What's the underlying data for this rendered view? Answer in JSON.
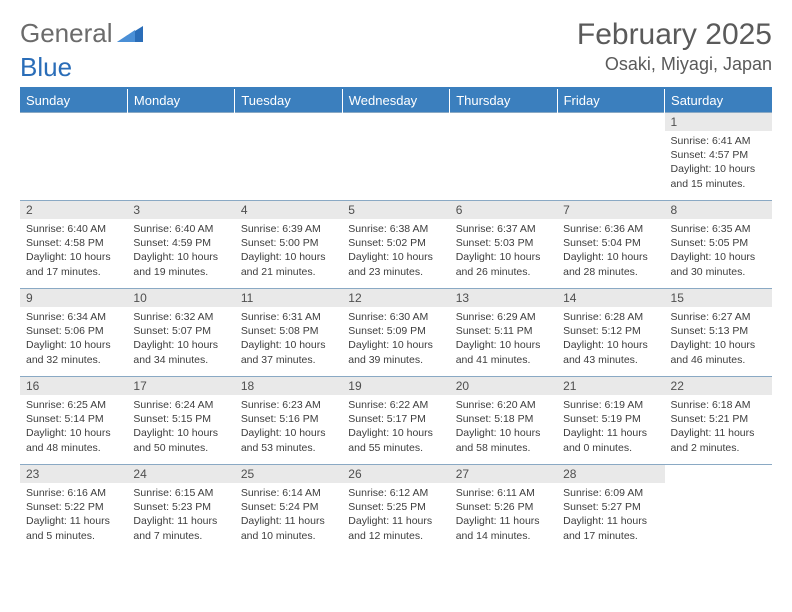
{
  "logo": {
    "word1": "General",
    "word2": "Blue"
  },
  "title": "February 2025",
  "location": "Osaki, Miyagi, Japan",
  "colors": {
    "header_bg": "#3b7fbe",
    "header_text": "#ffffff",
    "daynum_bg": "#e9e9e9",
    "rule": "#8aa9c4",
    "text": "#3d3d3d",
    "title_text": "#5a5a5a"
  },
  "weekdays": [
    "Sunday",
    "Monday",
    "Tuesday",
    "Wednesday",
    "Thursday",
    "Friday",
    "Saturday"
  ],
  "weeks": [
    [
      null,
      null,
      null,
      null,
      null,
      null,
      {
        "n": "1",
        "sr": "Sunrise: 6:41 AM",
        "ss": "Sunset: 4:57 PM",
        "d1": "Daylight: 10 hours",
        "d2": "and 15 minutes."
      }
    ],
    [
      {
        "n": "2",
        "sr": "Sunrise: 6:40 AM",
        "ss": "Sunset: 4:58 PM",
        "d1": "Daylight: 10 hours",
        "d2": "and 17 minutes."
      },
      {
        "n": "3",
        "sr": "Sunrise: 6:40 AM",
        "ss": "Sunset: 4:59 PM",
        "d1": "Daylight: 10 hours",
        "d2": "and 19 minutes."
      },
      {
        "n": "4",
        "sr": "Sunrise: 6:39 AM",
        "ss": "Sunset: 5:00 PM",
        "d1": "Daylight: 10 hours",
        "d2": "and 21 minutes."
      },
      {
        "n": "5",
        "sr": "Sunrise: 6:38 AM",
        "ss": "Sunset: 5:02 PM",
        "d1": "Daylight: 10 hours",
        "d2": "and 23 minutes."
      },
      {
        "n": "6",
        "sr": "Sunrise: 6:37 AM",
        "ss": "Sunset: 5:03 PM",
        "d1": "Daylight: 10 hours",
        "d2": "and 26 minutes."
      },
      {
        "n": "7",
        "sr": "Sunrise: 6:36 AM",
        "ss": "Sunset: 5:04 PM",
        "d1": "Daylight: 10 hours",
        "d2": "and 28 minutes."
      },
      {
        "n": "8",
        "sr": "Sunrise: 6:35 AM",
        "ss": "Sunset: 5:05 PM",
        "d1": "Daylight: 10 hours",
        "d2": "and 30 minutes."
      }
    ],
    [
      {
        "n": "9",
        "sr": "Sunrise: 6:34 AM",
        "ss": "Sunset: 5:06 PM",
        "d1": "Daylight: 10 hours",
        "d2": "and 32 minutes."
      },
      {
        "n": "10",
        "sr": "Sunrise: 6:32 AM",
        "ss": "Sunset: 5:07 PM",
        "d1": "Daylight: 10 hours",
        "d2": "and 34 minutes."
      },
      {
        "n": "11",
        "sr": "Sunrise: 6:31 AM",
        "ss": "Sunset: 5:08 PM",
        "d1": "Daylight: 10 hours",
        "d2": "and 37 minutes."
      },
      {
        "n": "12",
        "sr": "Sunrise: 6:30 AM",
        "ss": "Sunset: 5:09 PM",
        "d1": "Daylight: 10 hours",
        "d2": "and 39 minutes."
      },
      {
        "n": "13",
        "sr": "Sunrise: 6:29 AM",
        "ss": "Sunset: 5:11 PM",
        "d1": "Daylight: 10 hours",
        "d2": "and 41 minutes."
      },
      {
        "n": "14",
        "sr": "Sunrise: 6:28 AM",
        "ss": "Sunset: 5:12 PM",
        "d1": "Daylight: 10 hours",
        "d2": "and 43 minutes."
      },
      {
        "n": "15",
        "sr": "Sunrise: 6:27 AM",
        "ss": "Sunset: 5:13 PM",
        "d1": "Daylight: 10 hours",
        "d2": "and 46 minutes."
      }
    ],
    [
      {
        "n": "16",
        "sr": "Sunrise: 6:25 AM",
        "ss": "Sunset: 5:14 PM",
        "d1": "Daylight: 10 hours",
        "d2": "and 48 minutes."
      },
      {
        "n": "17",
        "sr": "Sunrise: 6:24 AM",
        "ss": "Sunset: 5:15 PM",
        "d1": "Daylight: 10 hours",
        "d2": "and 50 minutes."
      },
      {
        "n": "18",
        "sr": "Sunrise: 6:23 AM",
        "ss": "Sunset: 5:16 PM",
        "d1": "Daylight: 10 hours",
        "d2": "and 53 minutes."
      },
      {
        "n": "19",
        "sr": "Sunrise: 6:22 AM",
        "ss": "Sunset: 5:17 PM",
        "d1": "Daylight: 10 hours",
        "d2": "and 55 minutes."
      },
      {
        "n": "20",
        "sr": "Sunrise: 6:20 AM",
        "ss": "Sunset: 5:18 PM",
        "d1": "Daylight: 10 hours",
        "d2": "and 58 minutes."
      },
      {
        "n": "21",
        "sr": "Sunrise: 6:19 AM",
        "ss": "Sunset: 5:19 PM",
        "d1": "Daylight: 11 hours",
        "d2": "and 0 minutes."
      },
      {
        "n": "22",
        "sr": "Sunrise: 6:18 AM",
        "ss": "Sunset: 5:21 PM",
        "d1": "Daylight: 11 hours",
        "d2": "and 2 minutes."
      }
    ],
    [
      {
        "n": "23",
        "sr": "Sunrise: 6:16 AM",
        "ss": "Sunset: 5:22 PM",
        "d1": "Daylight: 11 hours",
        "d2": "and 5 minutes."
      },
      {
        "n": "24",
        "sr": "Sunrise: 6:15 AM",
        "ss": "Sunset: 5:23 PM",
        "d1": "Daylight: 11 hours",
        "d2": "and 7 minutes."
      },
      {
        "n": "25",
        "sr": "Sunrise: 6:14 AM",
        "ss": "Sunset: 5:24 PM",
        "d1": "Daylight: 11 hours",
        "d2": "and 10 minutes."
      },
      {
        "n": "26",
        "sr": "Sunrise: 6:12 AM",
        "ss": "Sunset: 5:25 PM",
        "d1": "Daylight: 11 hours",
        "d2": "and 12 minutes."
      },
      {
        "n": "27",
        "sr": "Sunrise: 6:11 AM",
        "ss": "Sunset: 5:26 PM",
        "d1": "Daylight: 11 hours",
        "d2": "and 14 minutes."
      },
      {
        "n": "28",
        "sr": "Sunrise: 6:09 AM",
        "ss": "Sunset: 5:27 PM",
        "d1": "Daylight: 11 hours",
        "d2": "and 17 minutes."
      },
      null
    ]
  ]
}
